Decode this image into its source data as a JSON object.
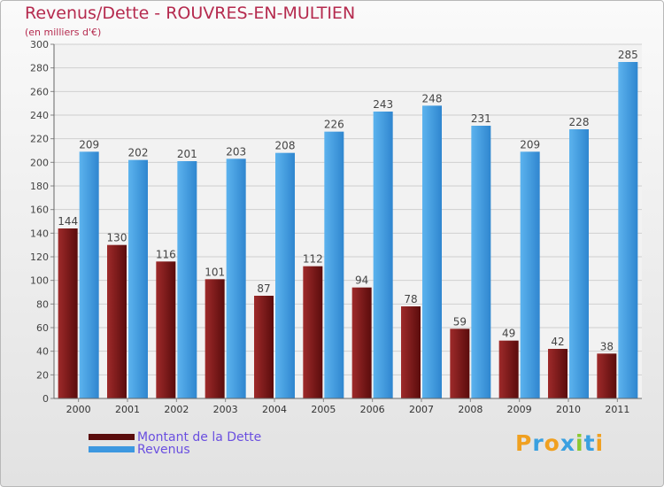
{
  "chart_data": {
    "type": "bar",
    "title": "Revenus/Dette - ROUVRES-EN-MULTIEN",
    "subtitle": "(en milliers d'€)",
    "categories": [
      "2000",
      "2001",
      "2002",
      "2003",
      "2004",
      "2005",
      "2006",
      "2007",
      "2008",
      "2009",
      "2010",
      "2011"
    ],
    "series": [
      {
        "name": "Montant de la Dette",
        "color": "#7a1515",
        "values": [
          144,
          130,
          116,
          101,
          87,
          112,
          94,
          78,
          59,
          49,
          42,
          38
        ]
      },
      {
        "name": "Revenus",
        "color": "#3d98e0",
        "values": [
          209,
          202,
          201,
          203,
          208,
          226,
          243,
          248,
          231,
          209,
          228,
          285
        ]
      }
    ],
    "ylim": [
      0,
      300
    ],
    "yticks": [
      0,
      20,
      40,
      60,
      80,
      100,
      120,
      140,
      160,
      180,
      200,
      220,
      240,
      260,
      280,
      300
    ],
    "grid": true,
    "legend_position": "bottom-left"
  },
  "logo": {
    "letters": [
      "P",
      "r",
      "o",
      "x",
      "i",
      "t",
      "i"
    ],
    "colors": [
      "#f0a020",
      "#3aa0e0",
      "#f0a020",
      "#3aa0e0",
      "#8cc830",
      "#3aa0e0",
      "#f0a020"
    ]
  }
}
